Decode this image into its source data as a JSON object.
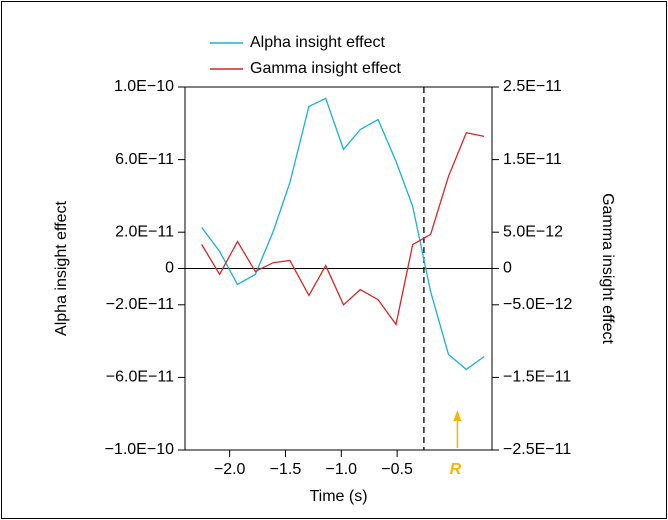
{
  "chart_data": {
    "type": "line",
    "x_label": "Time (s)",
    "y_label": "Alpha insight effect",
    "y2_label": "Gamma insight effect",
    "x": [
      -2.25,
      -2.09,
      -1.93,
      -1.77,
      -1.61,
      -1.46,
      -1.29,
      -1.14,
      -0.98,
      -0.83,
      -0.67,
      -0.51,
      -0.36,
      -0.2,
      -0.04,
      0.12,
      0.28
    ],
    "series": [
      {
        "name": "Alpha insight effect",
        "color": "#1ab0d8",
        "axis": "y",
        "values": [
          2.26e-11,
          9.4e-12,
          -8.8e-12,
          -3.3e-12,
          2.04e-11,
          4.74e-11,
          8.93e-11,
          9.37e-11,
          6.56e-11,
          7.66e-11,
          8.21e-11,
          5.9e-11,
          3.42e-11,
          -1.27e-11,
          -4.74e-11,
          -5.56e-11,
          -4.85e-11
        ]
      },
      {
        "name": "Gamma insight effect",
        "color": "#d62728",
        "axis": "y2",
        "values": [
          3.3e-12,
          -8e-13,
          3.7e-12,
          -4e-13,
          8e-13,
          1.1e-12,
          -3.7e-12,
          4e-13,
          -5e-12,
          -2.9e-12,
          -4.3e-12,
          -7.7e-12,
          3.3e-12,
          4.7e-12,
          1.27e-11,
          1.87e-11,
          1.82e-11
        ]
      }
    ],
    "xlim": [
      -2.4,
      0.35
    ],
    "xticks": [
      {
        "value": -2.0,
        "label": "−2.0"
      },
      {
        "value": -1.5,
        "label": "−1.5"
      },
      {
        "value": -1.0,
        "label": "−1.0"
      },
      {
        "value": -0.5,
        "label": "−0.5"
      }
    ],
    "ylim": [
      -1e-10,
      1e-10
    ],
    "yticks": [
      {
        "value": 1e-10,
        "label": "1.0E−10"
      },
      {
        "value": 6e-11,
        "label": "6.0E−11"
      },
      {
        "value": 2e-11,
        "label": "2.0E−11"
      },
      0,
      {
        "value": -2e-11,
        "label": "−2.0E−11"
      },
      {
        "value": -6e-11,
        "label": "−6.0E−11"
      },
      {
        "value": -1e-10,
        "label": "−1.0E−10"
      }
    ],
    "y2lim": [
      -2.5e-11,
      2.5e-11
    ],
    "y2ticks": [
      {
        "value": 2.5e-11,
        "label": "2.5E−11"
      },
      {
        "value": 1.5e-11,
        "label": "1.5E−11"
      },
      {
        "value": 5e-12,
        "label": "5.0E−12"
      },
      0,
      {
        "value": -5e-12,
        "label": "−5.0E−12"
      },
      {
        "value": -1.5e-11,
        "label": "−1.5E−11"
      },
      {
        "value": -2.5e-11,
        "label": "−2.5E−11"
      }
    ],
    "zero_line": true,
    "dashed_line_x": -0.26,
    "arrow_x": 0.04,
    "arrow_label": "R",
    "arrow_color": "#f5b800",
    "legend": "top"
  }
}
